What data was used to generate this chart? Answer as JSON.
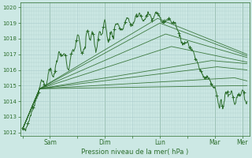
{
  "background_color": "#cce8e4",
  "grid_color": "#aacccc",
  "line_color": "#2d6e2d",
  "title": "Pression niveau de la mer( hPa )",
  "ylabel_ticks": [
    1012,
    1013,
    1014,
    1015,
    1016,
    1017,
    1018,
    1019,
    1020
  ],
  "xtick_labels": [
    "",
    "Sam",
    "",
    "Dim",
    "",
    "Lun",
    "",
    "Mar",
    "Mer"
  ],
  "xtick_positions": [
    0,
    24,
    48,
    72,
    96,
    120,
    144,
    168,
    192
  ],
  "ylim": [
    1011.8,
    1020.3
  ],
  "xlim": [
    -2,
    198
  ],
  "figsize": [
    3.2,
    2.0
  ],
  "dpi": 100,
  "convergence_t": 15,
  "convergence_v": 1014.8
}
